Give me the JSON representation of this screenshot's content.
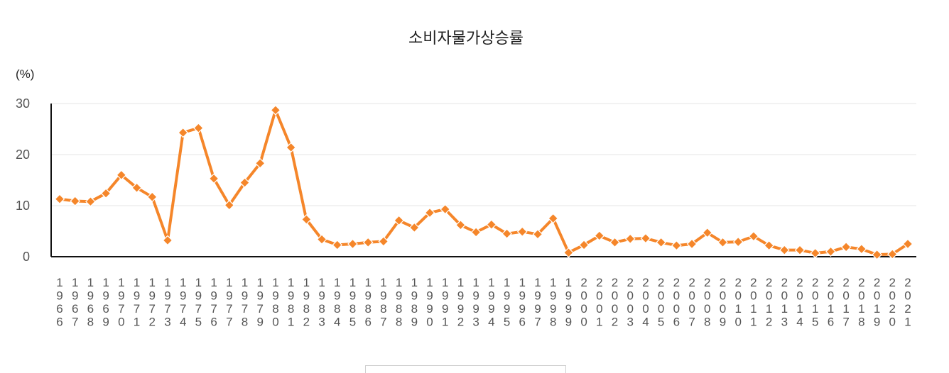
{
  "chart_data": {
    "type": "line",
    "title": "소비자물가상승률",
    "ylabel": "(%)",
    "xlabel": "",
    "ylim": [
      0,
      30
    ],
    "yticks": [
      0,
      10,
      20,
      30
    ],
    "grid": true,
    "color": "#f5862a",
    "x": [
      "1966",
      "1967",
      "1968",
      "1969",
      "1970",
      "1971",
      "1972",
      "1973",
      "1974",
      "1975",
      "1976",
      "1977",
      "1978",
      "1979",
      "1980",
      "1981",
      "1982",
      "1983",
      "1984",
      "1985",
      "1986",
      "1987",
      "1988",
      "1989",
      "1990",
      "1991",
      "1992",
      "1993",
      "1994",
      "1995",
      "1996",
      "1997",
      "1998",
      "1999",
      "2000",
      "2001",
      "2002",
      "2003",
      "2004",
      "2005",
      "2006",
      "2007",
      "2008",
      "2009",
      "2010",
      "2011",
      "2012",
      "2013",
      "2014",
      "2015",
      "2016",
      "2017",
      "2018",
      "2019",
      "2020",
      "2021"
    ],
    "series": [
      {
        "values": [
          11.3,
          10.9,
          10.8,
          12.4,
          16.0,
          13.5,
          11.7,
          3.2,
          24.3,
          25.2,
          15.3,
          10.1,
          14.5,
          18.3,
          28.7,
          21.4,
          7.3,
          3.4,
          2.3,
          2.5,
          2.8,
          3.0,
          7.1,
          5.7,
          8.6,
          9.3,
          6.2,
          4.8,
          6.3,
          4.5,
          4.9,
          4.4,
          7.5,
          0.8,
          2.3,
          4.1,
          2.8,
          3.5,
          3.6,
          2.8,
          2.2,
          2.5,
          4.7,
          2.8,
          2.9,
          4.0,
          2.2,
          1.3,
          1.3,
          0.7,
          1.0,
          1.9,
          1.5,
          0.4,
          0.5,
          2.5
        ]
      }
    ]
  }
}
